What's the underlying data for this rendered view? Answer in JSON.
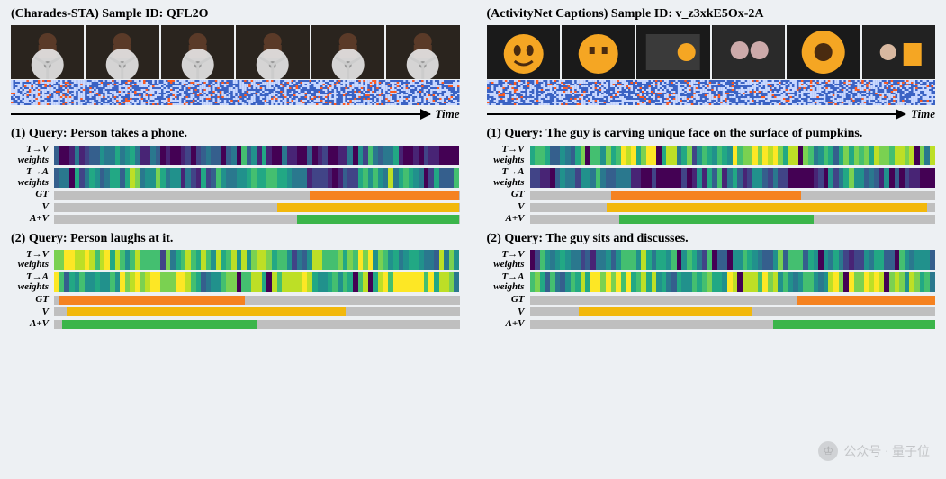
{
  "viridis": [
    "#440154",
    "#482475",
    "#414487",
    "#355f8d",
    "#2a788e",
    "#21918c",
    "#22a884",
    "#44bf70",
    "#7ad151",
    "#bddf26",
    "#fde725"
  ],
  "colors": {
    "bar_bg": "#bfbfbf",
    "gt": "#f58220",
    "v": "#f2b80c",
    "av": "#3bb54a",
    "spectro_bg": "#3b63c4",
    "spectro_noise": "#c9d8ff",
    "spectro_accent": "#ff5a1f"
  },
  "labels": {
    "time": "Time",
    "tv": "T→V\nweights",
    "ta": "T→A\nweights",
    "gt": "GT",
    "v": "V",
    "av": "A+V"
  },
  "watermark": {
    "icon": "♔",
    "text": "公众号 · 量子位"
  },
  "panels": [
    {
      "title_prefix": "(Charades-STA) Sample ID: ",
      "sample_id": "QFL2O",
      "frames": {
        "count": 6,
        "style": "fan",
        "colors": {
          "bg": "#2a241e",
          "fan": "#e8e8e8",
          "person": "#5a3a28"
        }
      },
      "spectro_density": 0.85,
      "queries": [
        {
          "label": "(1) Query: Person takes a phone.",
          "tv_seed": 11,
          "ta_seed": 23,
          "tv_tone": "cool",
          "ta_tone": "mid",
          "gt": {
            "start": 0.63,
            "end": 1.0,
            "color": "gt"
          },
          "v": {
            "start": 0.55,
            "end": 1.0,
            "color": "v"
          },
          "av": {
            "start": 0.6,
            "end": 1.0,
            "color": "av"
          }
        },
        {
          "label": "(2) Query: Person laughs at it.",
          "tv_seed": 37,
          "ta_seed": 41,
          "tv_tone": "warm",
          "ta_tone": "warm",
          "gt": {
            "start": 0.01,
            "end": 0.47,
            "color": "gt"
          },
          "v": {
            "start": 0.03,
            "end": 0.72,
            "color": "v"
          },
          "av": {
            "start": 0.02,
            "end": 0.5,
            "color": "av"
          }
        }
      ]
    },
    {
      "title_prefix": "(ActivityNet Captions) Sample ID: ",
      "sample_id": "v_z3xkE5Ox-2A",
      "frames": {
        "count": 6,
        "style": "pumpkin",
        "colors": {
          "bg": "#1a1a1a",
          "pumpkin": "#f5a623",
          "dark": "#4a2b10"
        }
      },
      "spectro_density": 0.9,
      "queries": [
        {
          "label": "(1) Query: The guy is carving unique face on the surface of pumpkins.",
          "tv_seed": 53,
          "ta_seed": 61,
          "tv_tone": "warm",
          "ta_tone": "cool",
          "gt": {
            "start": 0.2,
            "end": 0.67,
            "color": "gt"
          },
          "v": {
            "start": 0.19,
            "end": 0.98,
            "color": "v"
          },
          "av": {
            "start": 0.22,
            "end": 0.7,
            "color": "av"
          }
        },
        {
          "label": "(2) Query: The guy sits and discusses.",
          "tv_seed": 71,
          "ta_seed": 79,
          "tv_tone": "mid",
          "ta_tone": "warm",
          "gt": {
            "start": 0.66,
            "end": 1.0,
            "color": "gt"
          },
          "v": {
            "start": 0.12,
            "end": 0.55,
            "color": "v"
          },
          "av": {
            "start": 0.6,
            "end": 1.0,
            "color": "av"
          }
        }
      ]
    }
  ],
  "heatmap": {
    "cols": 80,
    "rows_per_strip": 2
  }
}
